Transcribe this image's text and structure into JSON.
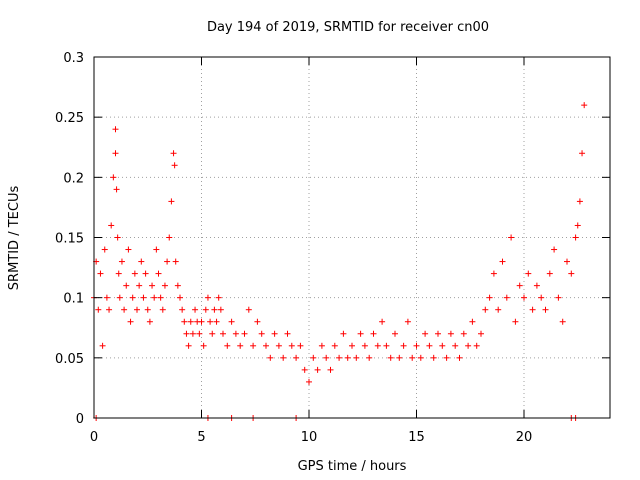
{
  "chart_data": {
    "type": "scatter",
    "title": "Day 194 of 2019, SRMTID for receiver cn00",
    "xlabel": "GPS time / hours",
    "ylabel": "SRMTID / TECUs",
    "xlim": [
      0,
      24
    ],
    "ylim": [
      0,
      0.3
    ],
    "xticks": [
      0,
      5,
      10,
      15,
      20
    ],
    "xtick_labels": [
      "0",
      "5",
      "10",
      "15",
      "20"
    ],
    "yticks": [
      0,
      0.05,
      0.1,
      0.15,
      0.2,
      0.25,
      0.3
    ],
    "ytick_labels": [
      "0",
      "0.05",
      "0.1",
      "0.15",
      "0.2",
      "0.25",
      "0.3"
    ],
    "grid": true,
    "marker": "+",
    "series": [
      {
        "name": "SRMTID",
        "color": "#ff0000",
        "x": [
          0.0,
          0.1,
          0.2,
          0.3,
          0.4,
          0.5,
          0.6,
          0.7,
          0.8,
          0.9,
          1.0,
          1.0,
          1.05,
          1.1,
          1.15,
          1.2,
          1.3,
          1.4,
          1.5,
          1.6,
          1.7,
          1.8,
          1.9,
          2.0,
          2.1,
          2.2,
          2.3,
          2.4,
          2.5,
          2.6,
          2.7,
          2.8,
          2.9,
          3.0,
          3.1,
          3.2,
          3.3,
          3.4,
          3.5,
          3.6,
          3.7,
          3.75,
          3.8,
          3.9,
          4.0,
          4.1,
          4.2,
          4.3,
          4.4,
          4.5,
          4.6,
          4.7,
          4.8,
          4.9,
          5.0,
          5.1,
          5.2,
          5.3,
          5.4,
          5.5,
          5.6,
          5.7,
          5.8,
          5.9,
          6.0,
          6.2,
          6.4,
          6.6,
          6.8,
          7.0,
          7.2,
          7.4,
          7.6,
          7.8,
          8.0,
          8.2,
          8.4,
          8.6,
          8.8,
          9.0,
          9.2,
          9.4,
          9.6,
          9.8,
          10.0,
          10.2,
          10.4,
          10.6,
          10.8,
          11.0,
          11.2,
          11.4,
          11.6,
          11.8,
          12.0,
          12.2,
          12.4,
          12.6,
          12.8,
          13.0,
          13.2,
          13.4,
          13.6,
          13.8,
          14.0,
          14.2,
          14.4,
          14.6,
          14.8,
          15.0,
          15.2,
          15.4,
          15.6,
          15.8,
          16.0,
          16.2,
          16.4,
          16.6,
          16.8,
          17.0,
          17.2,
          17.4,
          17.6,
          17.8,
          18.0,
          18.2,
          18.4,
          18.6,
          18.8,
          19.0,
          19.2,
          19.4,
          19.6,
          19.8,
          20.0,
          20.2,
          20.4,
          20.6,
          20.8,
          21.0,
          21.2,
          21.4,
          21.6,
          21.8,
          22.0,
          22.2,
          22.4,
          22.5,
          22.6,
          22.7,
          22.8
        ],
        "y": [
          0.1,
          0.13,
          0.09,
          0.12,
          0.06,
          0.14,
          0.1,
          0.09,
          0.16,
          0.2,
          0.24,
          0.22,
          0.19,
          0.15,
          0.12,
          0.1,
          0.13,
          0.09,
          0.11,
          0.14,
          0.08,
          0.1,
          0.12,
          0.09,
          0.11,
          0.13,
          0.1,
          0.12,
          0.09,
          0.08,
          0.11,
          0.1,
          0.14,
          0.12,
          0.1,
          0.09,
          0.11,
          0.13,
          0.15,
          0.18,
          0.22,
          0.21,
          0.13,
          0.11,
          0.1,
          0.09,
          0.08,
          0.07,
          0.06,
          0.08,
          0.07,
          0.09,
          0.08,
          0.07,
          0.08,
          0.06,
          0.09,
          0.1,
          0.08,
          0.07,
          0.09,
          0.08,
          0.1,
          0.09,
          0.07,
          0.06,
          0.08,
          0.07,
          0.06,
          0.07,
          0.09,
          0.06,
          0.08,
          0.07,
          0.06,
          0.05,
          0.07,
          0.06,
          0.05,
          0.07,
          0.06,
          0.05,
          0.06,
          0.04,
          0.03,
          0.05,
          0.04,
          0.06,
          0.05,
          0.04,
          0.06,
          0.05,
          0.07,
          0.05,
          0.06,
          0.05,
          0.07,
          0.06,
          0.05,
          0.07,
          0.06,
          0.08,
          0.06,
          0.05,
          0.07,
          0.05,
          0.06,
          0.08,
          0.05,
          0.06,
          0.05,
          0.07,
          0.06,
          0.05,
          0.07,
          0.06,
          0.05,
          0.07,
          0.06,
          0.05,
          0.07,
          0.06,
          0.08,
          0.06,
          0.07,
          0.09,
          0.1,
          0.12,
          0.09,
          0.13,
          0.1,
          0.15,
          0.08,
          0.11,
          0.1,
          0.12,
          0.09,
          0.11,
          0.1,
          0.09,
          0.12,
          0.14,
          0.1,
          0.08,
          0.13,
          0.12,
          0.15,
          0.16,
          0.18,
          0.22,
          0.26
        ]
      }
    ],
    "zero_markers_x": [
      0.1,
      5.3,
      6.4,
      7.4,
      9.4,
      22.2,
      22.4
    ]
  }
}
